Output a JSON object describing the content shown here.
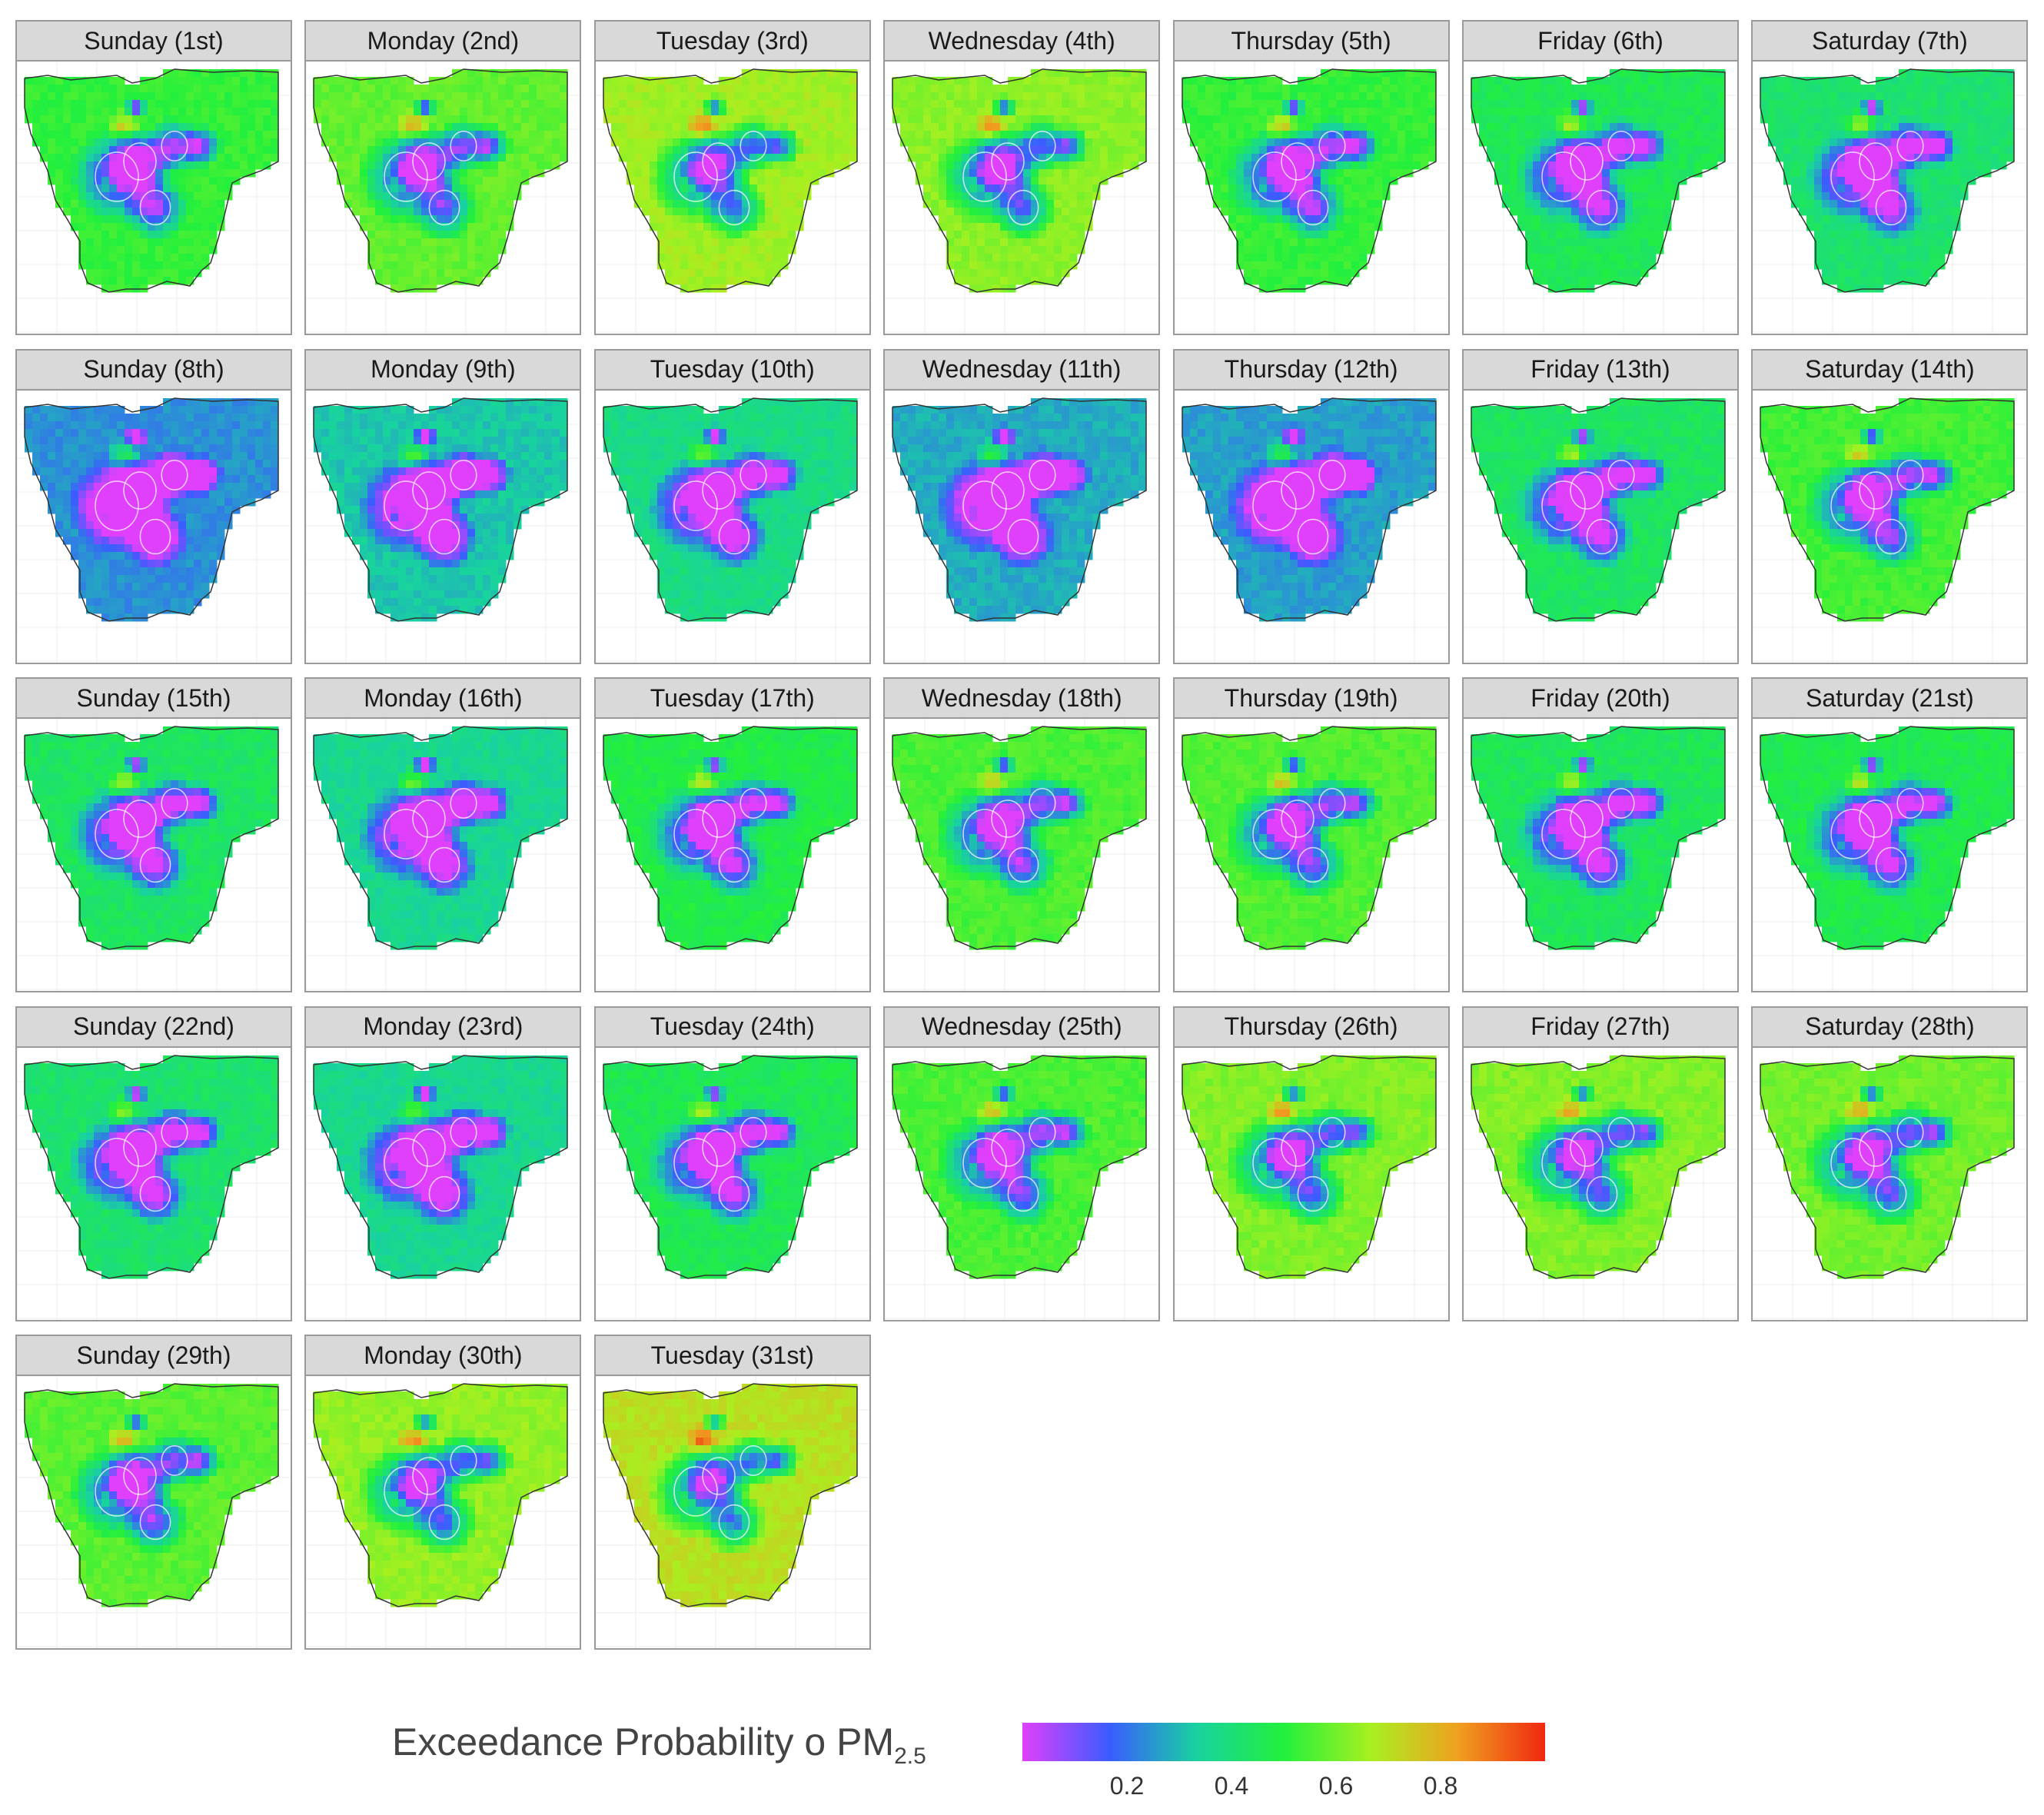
{
  "chart_data": {
    "type": "heatmap",
    "legend_title": "Exceedance Probability o PM",
    "legend_title_subscript": "2.5",
    "colorbar": {
      "range": [
        0,
        1
      ],
      "ticks": [
        0.2,
        0.4,
        0.6,
        0.8
      ],
      "tick_labels": [
        "0.2",
        "0.4",
        "0.6",
        "0.8"
      ],
      "colors": [
        "#e040fb",
        "#3a5cff",
        "#18d2a0",
        "#22f03c",
        "#a8f020",
        "#f0a020",
        "#f02810"
      ]
    },
    "legend_position": "bottom",
    "layout": {
      "columns": 7,
      "rows": 5
    },
    "panels": [
      {
        "label": "Sunday (1st)",
        "mean_probability": 0.52
      },
      {
        "label": "Monday (2nd)",
        "mean_probability": 0.58
      },
      {
        "label": "Tuesday (3rd)",
        "mean_probability": 0.66
      },
      {
        "label": "Wednesday (4th)",
        "mean_probability": 0.63
      },
      {
        "label": "Thursday (5th)",
        "mean_probability": 0.52
      },
      {
        "label": "Friday (6th)",
        "mean_probability": 0.46
      },
      {
        "label": "Saturday (7th)",
        "mean_probability": 0.42
      },
      {
        "label": "Sunday (8th)",
        "mean_probability": 0.24
      },
      {
        "label": "Monday (9th)",
        "mean_probability": 0.32
      },
      {
        "label": "Tuesday (10th)",
        "mean_probability": 0.38
      },
      {
        "label": "Wednesday (11th)",
        "mean_probability": 0.28
      },
      {
        "label": "Thursday (12th)",
        "mean_probability": 0.26
      },
      {
        "label": "Friday (13th)",
        "mean_probability": 0.44
      },
      {
        "label": "Saturday (14th)",
        "mean_probability": 0.54
      },
      {
        "label": "Sunday (15th)",
        "mean_probability": 0.44
      },
      {
        "label": "Monday (16th)",
        "mean_probability": 0.36
      },
      {
        "label": "Tuesday (17th)",
        "mean_probability": 0.48
      },
      {
        "label": "Wednesday (18th)",
        "mean_probability": 0.55
      },
      {
        "label": "Thursday (19th)",
        "mean_probability": 0.56
      },
      {
        "label": "Friday (20th)",
        "mean_probability": 0.45
      },
      {
        "label": "Saturday (21st)",
        "mean_probability": 0.47
      },
      {
        "label": "Sunday (22nd)",
        "mean_probability": 0.42
      },
      {
        "label": "Monday (23rd)",
        "mean_probability": 0.36
      },
      {
        "label": "Tuesday (24th)",
        "mean_probability": 0.46
      },
      {
        "label": "Wednesday (25th)",
        "mean_probability": 0.55
      },
      {
        "label": "Thursday (26th)",
        "mean_probability": 0.62
      },
      {
        "label": "Friday (27th)",
        "mean_probability": 0.62
      },
      {
        "label": "Saturday (28th)",
        "mean_probability": 0.6
      },
      {
        "label": "Sunday (29th)",
        "mean_probability": 0.57
      },
      {
        "label": "Monday (30th)",
        "mean_probability": 0.64
      },
      {
        "label": "Tuesday (31st)",
        "mean_probability": 0.7
      }
    ]
  }
}
